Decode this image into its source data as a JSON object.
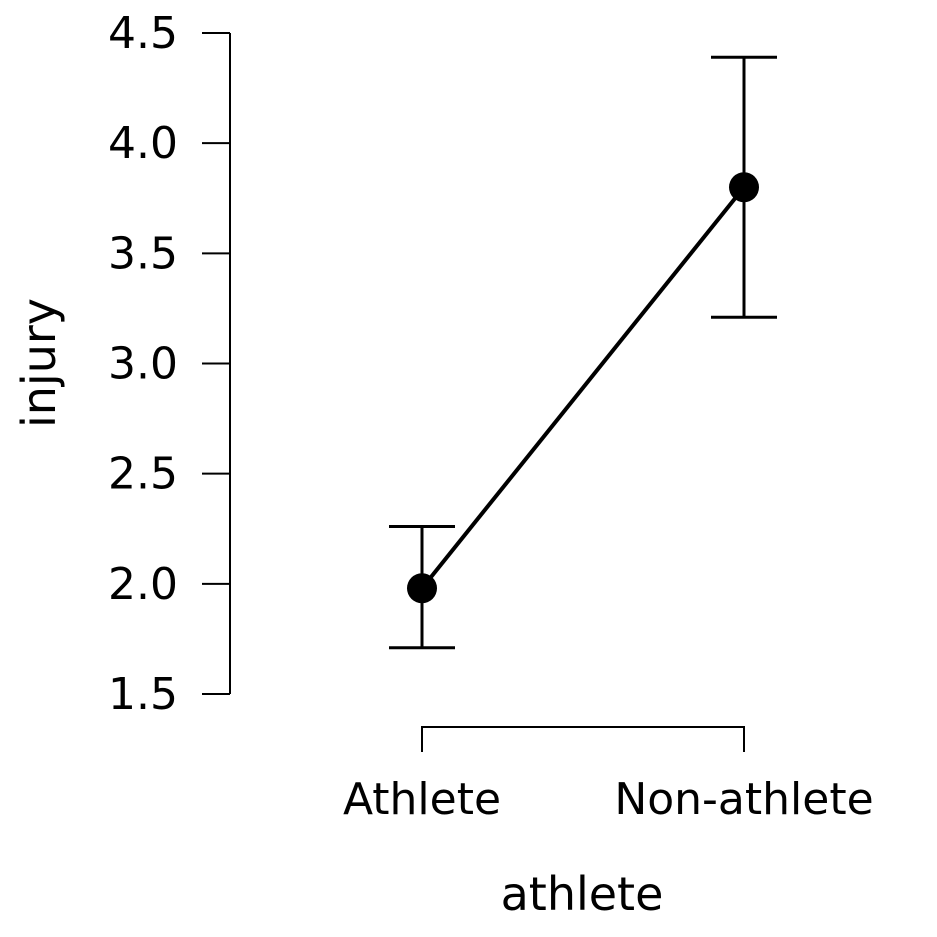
{
  "chart_data": {
    "type": "line",
    "title": "",
    "xlabel": "athlete",
    "ylabel": "injury",
    "categories": [
      "Athlete",
      "Non-athlete"
    ],
    "series": [
      {
        "values": [
          1.98,
          3.8
        ],
        "ci_lower": [
          1.71,
          3.21
        ],
        "ci_upper": [
          2.26,
          4.39
        ]
      }
    ],
    "ylim": [
      1.5,
      4.5
    ],
    "yticks": [
      "1.5",
      "2.0",
      "2.5",
      "3.0",
      "3.5",
      "4.0",
      "4.5"
    ],
    "grid": false,
    "legend": "none",
    "colors": {
      "line": "#000000",
      "point": "#000000",
      "error_bar": "#000000"
    }
  }
}
